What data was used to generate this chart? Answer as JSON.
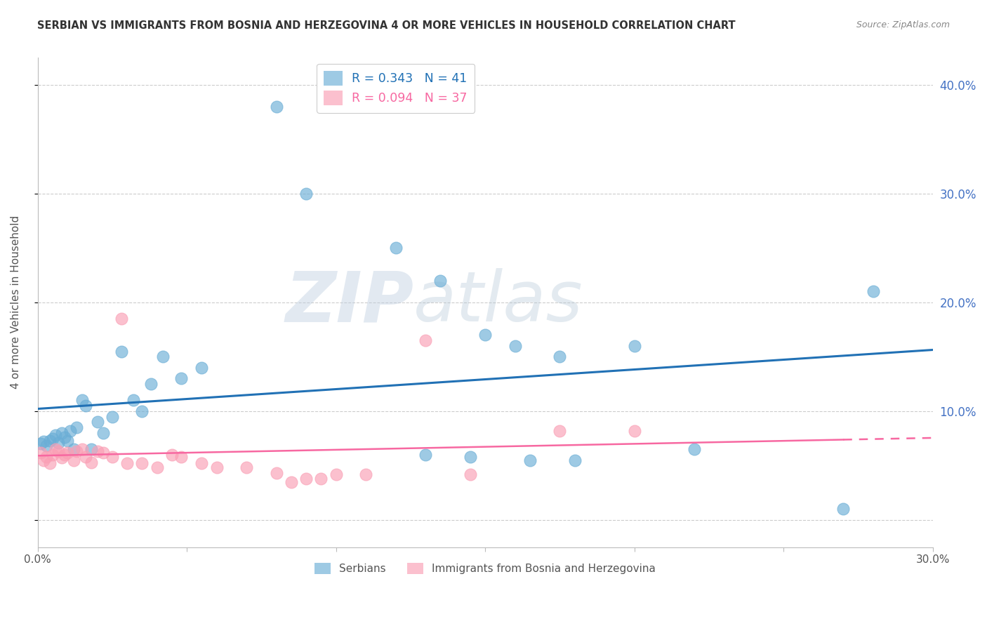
{
  "title": "SERBIAN VS IMMIGRANTS FROM BOSNIA AND HERZEGOVINA 4 OR MORE VEHICLES IN HOUSEHOLD CORRELATION CHART",
  "source": "Source: ZipAtlas.com",
  "ylabel": "4 or more Vehicles in Household",
  "xlim": [
    0.0,
    0.3
  ],
  "ylim": [
    -0.025,
    0.425
  ],
  "legend_r1": "R = 0.343",
  "legend_n1": "N = 41",
  "legend_r2": "R = 0.094",
  "legend_n2": "N = 37",
  "label1": "Serbians",
  "label2": "Immigrants from Bosnia and Herzegovina",
  "color1": "#6baed6",
  "color2": "#fa9fb5",
  "line_color1": "#2171b5",
  "line_color2": "#f768a1",
  "watermark_zip": "ZIP",
  "watermark_atlas": "atlas",
  "serbian_x": [
    0.001,
    0.002,
    0.003,
    0.004,
    0.005,
    0.006,
    0.007,
    0.008,
    0.009,
    0.01,
    0.011,
    0.012,
    0.013,
    0.015,
    0.016,
    0.018,
    0.02,
    0.022,
    0.025,
    0.028,
    0.032,
    0.035,
    0.038,
    0.042,
    0.048,
    0.055,
    0.08,
    0.09,
    0.12,
    0.135,
    0.15,
    0.16,
    0.175,
    0.2,
    0.13,
    0.145,
    0.165,
    0.18,
    0.22,
    0.27,
    0.28
  ],
  "serbian_y": [
    0.07,
    0.072,
    0.068,
    0.073,
    0.075,
    0.078,
    0.071,
    0.08,
    0.076,
    0.073,
    0.082,
    0.065,
    0.085,
    0.11,
    0.105,
    0.065,
    0.09,
    0.08,
    0.095,
    0.155,
    0.11,
    0.1,
    0.125,
    0.15,
    0.13,
    0.14,
    0.38,
    0.3,
    0.25,
    0.22,
    0.17,
    0.16,
    0.15,
    0.16,
    0.06,
    0.058,
    0.055,
    0.055,
    0.065,
    0.01,
    0.21
  ],
  "bosnian_x": [
    0.001,
    0.002,
    0.003,
    0.004,
    0.005,
    0.006,
    0.007,
    0.008,
    0.009,
    0.01,
    0.012,
    0.013,
    0.015,
    0.016,
    0.018,
    0.02,
    0.022,
    0.025,
    0.028,
    0.03,
    0.035,
    0.04,
    0.045,
    0.048,
    0.055,
    0.06,
    0.07,
    0.08,
    0.09,
    0.1,
    0.11,
    0.13,
    0.145,
    0.175,
    0.085,
    0.095,
    0.2
  ],
  "bosnian_y": [
    0.062,
    0.055,
    0.058,
    0.052,
    0.06,
    0.065,
    0.063,
    0.057,
    0.06,
    0.062,
    0.055,
    0.063,
    0.065,
    0.058,
    0.053,
    0.063,
    0.062,
    0.058,
    0.185,
    0.052,
    0.052,
    0.048,
    0.06,
    0.058,
    0.052,
    0.048,
    0.048,
    0.043,
    0.038,
    0.042,
    0.042,
    0.165,
    0.042,
    0.082,
    0.035,
    0.038,
    0.082
  ]
}
